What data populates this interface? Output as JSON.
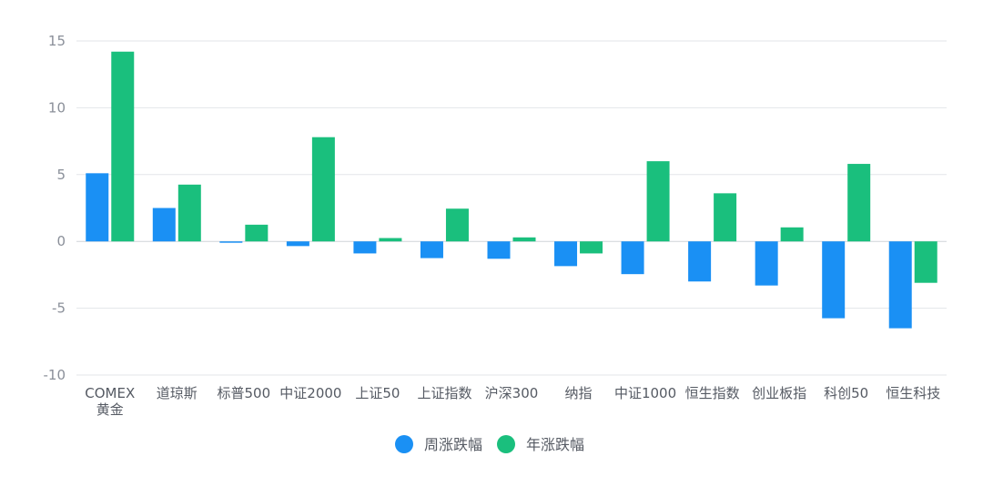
{
  "chart_data": {
    "type": "bar",
    "title": "",
    "xlabel": "",
    "ylabel": "",
    "ylim": [
      -10,
      15
    ],
    "yticks": [
      "15",
      "10",
      "5",
      "0",
      "-5",
      "-10"
    ],
    "ytick_values": [
      15,
      10,
      5,
      0,
      -5,
      -10
    ],
    "grid": true,
    "legend_position": "bottom-center",
    "categories": [
      [
        "COMEX",
        "黄金"
      ],
      [
        "道琼斯"
      ],
      [
        "标普500"
      ],
      [
        "中证2000"
      ],
      [
        "上证50"
      ],
      [
        "上证指数"
      ],
      [
        "沪深300"
      ],
      [
        "纳指"
      ],
      [
        "中证1000"
      ],
      [
        "恒生指数"
      ],
      [
        "创业板指"
      ],
      [
        "科创50"
      ],
      [
        "恒生科技"
      ]
    ],
    "series": [
      {
        "name": "周涨跌幅",
        "color": "#1a90f4",
        "values": [
          5.1,
          2.5,
          -0.1,
          -0.35,
          -0.9,
          -1.25,
          -1.3,
          -1.85,
          -2.45,
          -3.0,
          -3.3,
          -5.75,
          -6.5
        ]
      },
      {
        "name": "年涨跌幅",
        "color": "#1abf7d",
        "values": [
          14.2,
          4.25,
          1.25,
          7.8,
          0.25,
          2.45,
          0.3,
          -0.9,
          6.0,
          3.6,
          1.05,
          5.8,
          -3.1
        ]
      }
    ]
  }
}
